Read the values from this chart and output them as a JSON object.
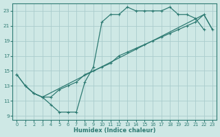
{
  "xlabel": "Humidex (Indice chaleur)",
  "bg_color": "#cee8e5",
  "grid_color": "#aacccc",
  "line_color": "#2d7a72",
  "xlim": [
    -0.5,
    23.5
  ],
  "ylim": [
    8.5,
    24.0
  ],
  "xticks": [
    0,
    1,
    2,
    3,
    4,
    5,
    6,
    7,
    8,
    9,
    10,
    11,
    12,
    13,
    14,
    15,
    16,
    17,
    18,
    19,
    20,
    21,
    22,
    23
  ],
  "yticks": [
    9,
    11,
    13,
    15,
    17,
    19,
    21,
    23
  ],
  "line1_x": [
    0,
    1,
    2,
    3,
    4,
    5,
    6,
    7,
    8,
    9,
    10,
    11,
    12,
    13,
    14,
    15,
    16,
    17,
    18,
    19,
    20,
    21,
    22
  ],
  "line1_y": [
    14.5,
    13.0,
    12.0,
    11.5,
    10.5,
    9.5,
    9.5,
    9.5,
    13.5,
    15.5,
    21.5,
    22.5,
    22.5,
    23.5,
    23.0,
    23.0,
    23.0,
    23.0,
    23.5,
    22.5,
    22.5,
    22.0,
    20.5
  ],
  "line2_x": [
    0,
    1,
    2,
    3,
    4,
    5,
    6,
    7,
    8,
    9,
    10,
    11,
    12,
    13,
    14,
    15,
    16,
    17,
    18,
    19,
    20,
    21,
    22,
    23
  ],
  "line2_y": [
    14.5,
    13.0,
    12.0,
    11.5,
    11.5,
    12.5,
    13.0,
    13.5,
    14.5,
    15.0,
    15.5,
    16.0,
    17.0,
    17.5,
    18.0,
    18.5,
    19.0,
    19.5,
    20.0,
    20.5,
    21.0,
    21.5,
    22.5,
    20.5
  ],
  "line3_x": [
    1,
    2,
    3,
    22,
    23
  ],
  "line3_y": [
    13.0,
    12.0,
    11.5,
    22.5,
    20.5
  ]
}
